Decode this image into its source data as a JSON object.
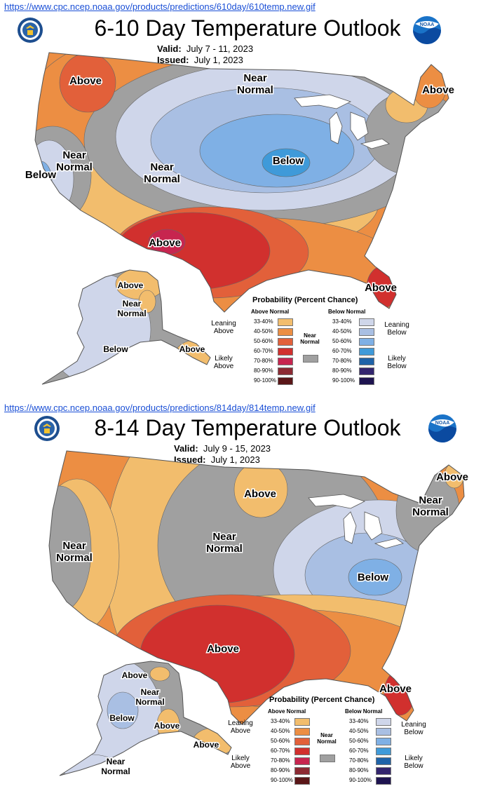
{
  "colors": {
    "above_33_40": "#f2bd6d",
    "above_40_50": "#ec8e43",
    "above_50_60": "#e2603a",
    "above_60_70": "#d1302e",
    "above_70_80": "#c7254f",
    "above_80_90": "#8c2a33",
    "above_90_100": "#5a1618",
    "near_normal": "#a0a0a0",
    "below_33_40": "#cfd6ea",
    "below_40_50": "#a9bfe3",
    "below_50_60": "#7fb0e5",
    "below_60_70": "#3f9ad9",
    "below_70_80": "#1f63a8",
    "below_80_90": "#33256e",
    "below_90_100": "#1e1450"
  },
  "panels": [
    {
      "url": "https://www.cpc.ncep.noaa.gov/products/predictions/610day/610temp.new.gif",
      "title": "6-10 Day Temperature Outlook",
      "valid_label": "Valid:",
      "valid_value": "July 7 - 11, 2023",
      "issued_label": "Issued:",
      "issued_value": "July 1, 2023",
      "logo_left": "doc-seal-icon",
      "logo_right": "noaa-logo-icon",
      "noaa_text": "NOAA",
      "region_labels": {
        "above_nw": "Above",
        "near_normal_north": "Near\nNormal",
        "above_ne": "Above",
        "below_west": "Below",
        "near_normal_west": "Near\nNormal",
        "near_normal_center": "Near\nNormal",
        "below_center": "Below",
        "above_sw": "Above",
        "above_fl": "Above",
        "ak_above": "Above",
        "ak_near_normal": "Near\nNormal",
        "ak_below": "Below",
        "ak_above_se": "Above"
      },
      "legend": {
        "title": "Probability (Percent Chance)",
        "above_head": "Above Normal",
        "below_head": "Below Normal",
        "ranges": [
          "33-40%",
          "40-50%",
          "50-60%",
          "60-70%",
          "70-80%",
          "80-90%",
          "90-100%"
        ],
        "leaning_above": "Leaning\nAbove",
        "likely_above": "Likely\nAbove",
        "near_normal": "Near\nNormal",
        "leaning_below": "Leaning\nBelow",
        "likely_below": "Likely\nBelow"
      }
    },
    {
      "url": "https://www.cpc.ncep.noaa.gov/products/predictions/814day/814temp.new.gif",
      "title": "8-14 Day Temperature Outlook",
      "valid_label": "Valid:",
      "valid_value": "July 9 - 15, 2023",
      "issued_label": "Issued:",
      "issued_value": "July 1, 2023",
      "logo_left": "doc-seal-icon",
      "logo_right": "noaa-logo-icon",
      "noaa_text": "NOAA",
      "region_labels": {
        "above_north": "Above",
        "above_ne": "Above",
        "near_normal_ne": "Near\nNormal",
        "near_normal_west": "Near\nNormal",
        "near_normal_center": "Near\nNormal",
        "below_east": "Below",
        "above_south": "Above",
        "above_fl": "Above",
        "ak_above": "Above",
        "ak_near_normal": "Near\nNormal",
        "ak_below": "Below",
        "ak_above_s": "Above",
        "ak_above_se": "Above",
        "ak_near_normal_sw": "Near\nNormal"
      },
      "legend": {
        "title": "Probability (Percent Chance)",
        "above_head": "Above Normal",
        "below_head": "Below Normal",
        "ranges": [
          "33-40%",
          "40-50%",
          "50-60%",
          "60-70%",
          "70-80%",
          "80-90%",
          "90-100%"
        ],
        "leaning_above": "Leaning\nAbove",
        "likely_above": "Likely\nAbove",
        "near_normal": "Near\nNormal",
        "leaning_below": "Leaning\nBelow",
        "likely_below": "Likely\nBelow"
      }
    }
  ]
}
